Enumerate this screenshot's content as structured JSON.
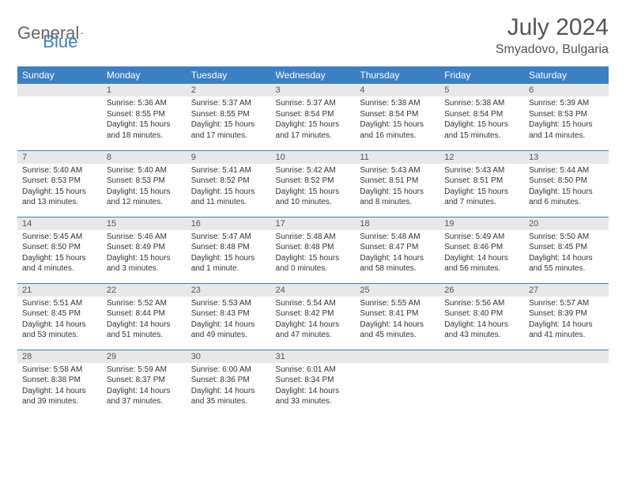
{
  "brand": {
    "part1": "General",
    "part2": "Blue"
  },
  "title": "July 2024",
  "location": "Smyadovo, Bulgaria",
  "colors": {
    "header_bg": "#3b7fc4",
    "header_fg": "#ffffff",
    "daynum_bg": "#e8e8e8",
    "row_border": "#3b7fc4",
    "brand_gray": "#666666",
    "brand_blue": "#3b7fc4",
    "text": "#333333",
    "title_color": "#555555"
  },
  "weekdays": [
    "Sunday",
    "Monday",
    "Tuesday",
    "Wednesday",
    "Thursday",
    "Friday",
    "Saturday"
  ],
  "weeks": [
    [
      {
        "n": "",
        "sr": "",
        "ss": "",
        "dl": ""
      },
      {
        "n": "1",
        "sr": "5:36 AM",
        "ss": "8:55 PM",
        "dl": "15 hours and 18 minutes."
      },
      {
        "n": "2",
        "sr": "5:37 AM",
        "ss": "8:55 PM",
        "dl": "15 hours and 17 minutes."
      },
      {
        "n": "3",
        "sr": "5:37 AM",
        "ss": "8:54 PM",
        "dl": "15 hours and 17 minutes."
      },
      {
        "n": "4",
        "sr": "5:38 AM",
        "ss": "8:54 PM",
        "dl": "15 hours and 16 minutes."
      },
      {
        "n": "5",
        "sr": "5:38 AM",
        "ss": "8:54 PM",
        "dl": "15 hours and 15 minutes."
      },
      {
        "n": "6",
        "sr": "5:39 AM",
        "ss": "8:53 PM",
        "dl": "15 hours and 14 minutes."
      }
    ],
    [
      {
        "n": "7",
        "sr": "5:40 AM",
        "ss": "8:53 PM",
        "dl": "15 hours and 13 minutes."
      },
      {
        "n": "8",
        "sr": "5:40 AM",
        "ss": "8:53 PM",
        "dl": "15 hours and 12 minutes."
      },
      {
        "n": "9",
        "sr": "5:41 AM",
        "ss": "8:52 PM",
        "dl": "15 hours and 11 minutes."
      },
      {
        "n": "10",
        "sr": "5:42 AM",
        "ss": "8:52 PM",
        "dl": "15 hours and 10 minutes."
      },
      {
        "n": "11",
        "sr": "5:43 AM",
        "ss": "8:51 PM",
        "dl": "15 hours and 8 minutes."
      },
      {
        "n": "12",
        "sr": "5:43 AM",
        "ss": "8:51 PM",
        "dl": "15 hours and 7 minutes."
      },
      {
        "n": "13",
        "sr": "5:44 AM",
        "ss": "8:50 PM",
        "dl": "15 hours and 6 minutes."
      }
    ],
    [
      {
        "n": "14",
        "sr": "5:45 AM",
        "ss": "8:50 PM",
        "dl": "15 hours and 4 minutes."
      },
      {
        "n": "15",
        "sr": "5:46 AM",
        "ss": "8:49 PM",
        "dl": "15 hours and 3 minutes."
      },
      {
        "n": "16",
        "sr": "5:47 AM",
        "ss": "8:48 PM",
        "dl": "15 hours and 1 minute."
      },
      {
        "n": "17",
        "sr": "5:48 AM",
        "ss": "8:48 PM",
        "dl": "15 hours and 0 minutes."
      },
      {
        "n": "18",
        "sr": "5:48 AM",
        "ss": "8:47 PM",
        "dl": "14 hours and 58 minutes."
      },
      {
        "n": "19",
        "sr": "5:49 AM",
        "ss": "8:46 PM",
        "dl": "14 hours and 56 minutes."
      },
      {
        "n": "20",
        "sr": "5:50 AM",
        "ss": "8:45 PM",
        "dl": "14 hours and 55 minutes."
      }
    ],
    [
      {
        "n": "21",
        "sr": "5:51 AM",
        "ss": "8:45 PM",
        "dl": "14 hours and 53 minutes."
      },
      {
        "n": "22",
        "sr": "5:52 AM",
        "ss": "8:44 PM",
        "dl": "14 hours and 51 minutes."
      },
      {
        "n": "23",
        "sr": "5:53 AM",
        "ss": "8:43 PM",
        "dl": "14 hours and 49 minutes."
      },
      {
        "n": "24",
        "sr": "5:54 AM",
        "ss": "8:42 PM",
        "dl": "14 hours and 47 minutes."
      },
      {
        "n": "25",
        "sr": "5:55 AM",
        "ss": "8:41 PM",
        "dl": "14 hours and 45 minutes."
      },
      {
        "n": "26",
        "sr": "5:56 AM",
        "ss": "8:40 PM",
        "dl": "14 hours and 43 minutes."
      },
      {
        "n": "27",
        "sr": "5:57 AM",
        "ss": "8:39 PM",
        "dl": "14 hours and 41 minutes."
      }
    ],
    [
      {
        "n": "28",
        "sr": "5:58 AM",
        "ss": "8:38 PM",
        "dl": "14 hours and 39 minutes."
      },
      {
        "n": "29",
        "sr": "5:59 AM",
        "ss": "8:37 PM",
        "dl": "14 hours and 37 minutes."
      },
      {
        "n": "30",
        "sr": "6:00 AM",
        "ss": "8:36 PM",
        "dl": "14 hours and 35 minutes."
      },
      {
        "n": "31",
        "sr": "6:01 AM",
        "ss": "8:34 PM",
        "dl": "14 hours and 33 minutes."
      },
      {
        "n": "",
        "sr": "",
        "ss": "",
        "dl": ""
      },
      {
        "n": "",
        "sr": "",
        "ss": "",
        "dl": ""
      },
      {
        "n": "",
        "sr": "",
        "ss": "",
        "dl": ""
      }
    ]
  ],
  "labels": {
    "sunrise": "Sunrise:",
    "sunset": "Sunset:",
    "daylight": "Daylight:"
  }
}
